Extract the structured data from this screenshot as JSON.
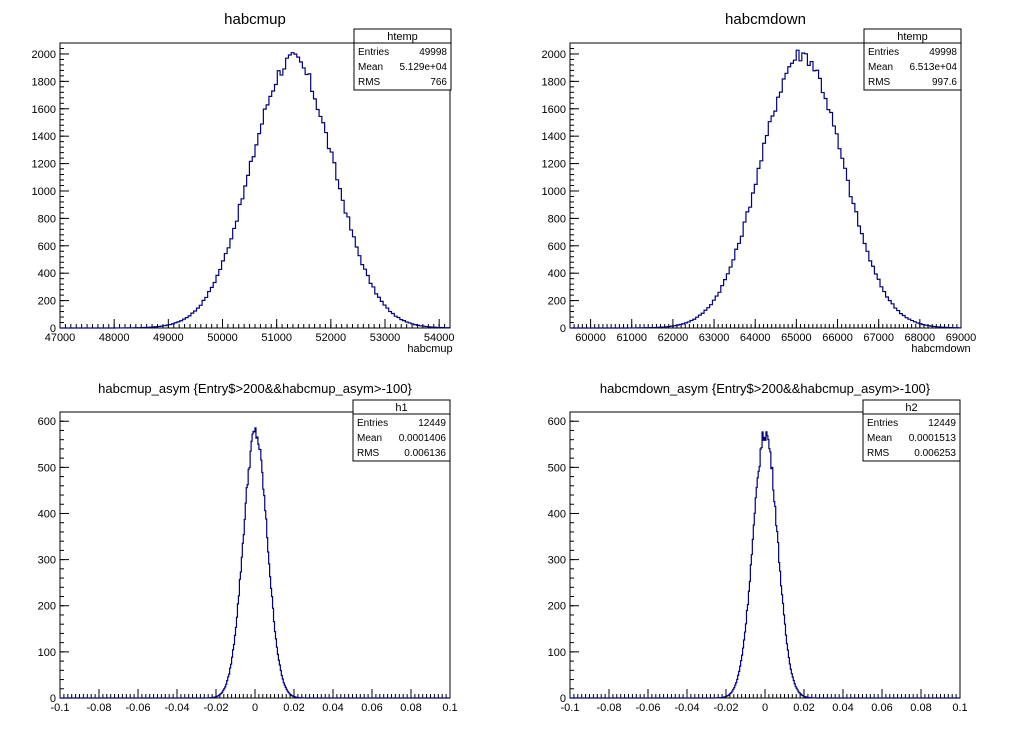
{
  "chart_data": [
    {
      "type": "histogram",
      "title": "habcmup",
      "xlabel": "habcmup",
      "ylabel": "",
      "xlim": [
        47000,
        54200
      ],
      "ylim": [
        0,
        2080
      ],
      "xticks": [
        47000,
        48000,
        49000,
        50000,
        51000,
        52000,
        53000,
        54000
      ],
      "yticks": [
        0,
        200,
        400,
        600,
        800,
        1000,
        1200,
        1400,
        1600,
        1800,
        2000
      ],
      "grid": false,
      "distribution": {
        "mean": 51290,
        "rms": 766,
        "peak": 1960,
        "entries": 49998
      },
      "stats_box": {
        "name": "htemp",
        "rows": [
          {
            "label": "Entries",
            "value": "49998"
          },
          {
            "label": "Mean",
            "value": "5.129e+04"
          },
          {
            "label": "RMS",
            "value": "766"
          }
        ]
      }
    },
    {
      "type": "histogram",
      "title": "habcmdown",
      "xlabel": "habcmdown",
      "ylabel": "",
      "xlim": [
        59500,
        69000
      ],
      "ylim": [
        0,
        2080
      ],
      "xticks": [
        60000,
        61000,
        62000,
        63000,
        64000,
        65000,
        66000,
        67000,
        68000,
        69000
      ],
      "yticks": [
        0,
        200,
        400,
        600,
        800,
        1000,
        1200,
        1400,
        1600,
        1800,
        2000
      ],
      "grid": false,
      "distribution": {
        "mean": 65130,
        "rms": 997.6,
        "peak": 2000,
        "entries": 49998
      },
      "stats_box": {
        "name": "htemp",
        "rows": [
          {
            "label": "Entries",
            "value": "49998"
          },
          {
            "label": "Mean",
            "value": "6.513e+04"
          },
          {
            "label": "RMS",
            "value": "997.6"
          }
        ]
      }
    },
    {
      "type": "histogram",
      "title": "habcmup_asym {Entry$>200&&habcmup_asym>-100}",
      "xlabel": "",
      "ylabel": "",
      "xlim": [
        -0.1,
        0.1
      ],
      "ylim": [
        0,
        620
      ],
      "xticks": [
        -0.1,
        -0.08,
        -0.06,
        -0.04,
        -0.02,
        0,
        0.02,
        0.04,
        0.06,
        0.08,
        0.1
      ],
      "yticks": [
        0,
        100,
        200,
        300,
        400,
        500,
        600
      ],
      "grid": false,
      "distribution": {
        "mean": 0.0001406,
        "rms": 0.006136,
        "peak": 575,
        "entries": 12449
      },
      "stats_box": {
        "name": "h1",
        "rows": [
          {
            "label": "Entries",
            "value": "12449"
          },
          {
            "label": "Mean",
            "value": "0.0001406"
          },
          {
            "label": "RMS",
            "value": "0.006136"
          }
        ]
      }
    },
    {
      "type": "histogram",
      "title": "habcmdown_asym {Entry$>200&&habcmup_asym>-100}",
      "xlabel": "",
      "ylabel": "",
      "xlim": [
        -0.1,
        0.1
      ],
      "ylim": [
        0,
        620
      ],
      "xticks": [
        -0.1,
        -0.08,
        -0.06,
        -0.04,
        -0.02,
        0,
        0.02,
        0.04,
        0.06,
        0.08,
        0.1
      ],
      "yticks": [
        0,
        100,
        200,
        300,
        400,
        500,
        600
      ],
      "grid": false,
      "distribution": {
        "mean": 0.0001513,
        "rms": 0.006253,
        "peak": 575,
        "entries": 12449
      },
      "stats_box": {
        "name": "h2",
        "rows": [
          {
            "label": "Entries",
            "value": "12449"
          },
          {
            "label": "Mean",
            "value": "0.0001513"
          },
          {
            "label": "RMS",
            "value": "0.006253"
          }
        ]
      }
    }
  ],
  "colors": {
    "histogram_line": "#000080",
    "axis": "#000000",
    "background": "#ffffff"
  }
}
